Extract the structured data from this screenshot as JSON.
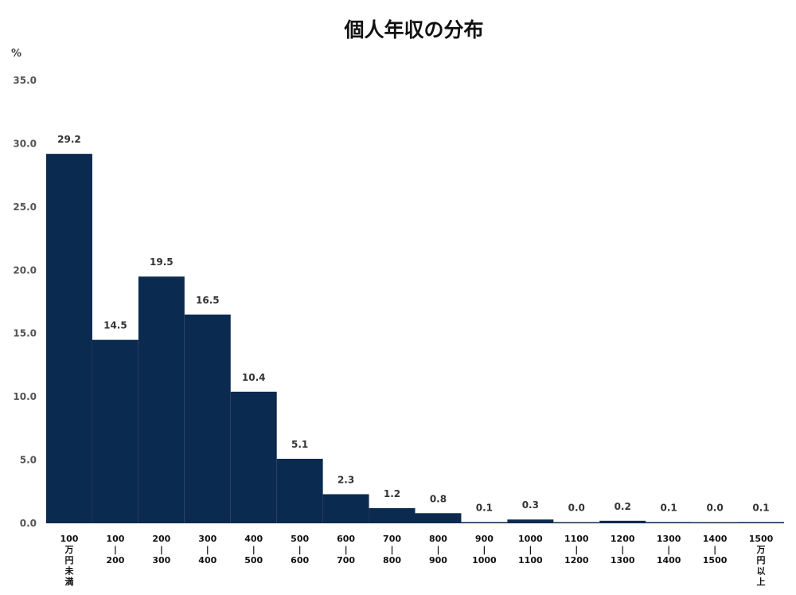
{
  "chart_data": {
    "type": "bar",
    "title": "個人年収の分布",
    "ylabel": "%",
    "xlabel": "",
    "ylim": [
      0,
      35
    ],
    "yticks": [
      "0.0",
      "5.0",
      "10.0",
      "15.0",
      "20.0",
      "25.0",
      "30.0",
      "35.0"
    ],
    "grid": false,
    "legend": "none",
    "categories": [
      [
        "100",
        "万",
        "円",
        "未",
        "満"
      ],
      [
        "100",
        "|",
        "200"
      ],
      [
        "200",
        "|",
        "300"
      ],
      [
        "300",
        "|",
        "400"
      ],
      [
        "400",
        "|",
        "500"
      ],
      [
        "500",
        "|",
        "600"
      ],
      [
        "600",
        "|",
        "700"
      ],
      [
        "700",
        "|",
        "800"
      ],
      [
        "800",
        "|",
        "900"
      ],
      [
        "900",
        "|",
        "1000"
      ],
      [
        "1000",
        "|",
        "1100"
      ],
      [
        "1100",
        "|",
        "1200"
      ],
      [
        "1200",
        "|",
        "1300"
      ],
      [
        "1300",
        "|",
        "1400"
      ],
      [
        "1400",
        "|",
        "1500"
      ],
      [
        "1500",
        "万",
        "円",
        "以",
        "上"
      ]
    ],
    "values": [
      29.2,
      14.5,
      19.5,
      16.5,
      10.4,
      5.1,
      2.3,
      1.2,
      0.8,
      0.1,
      0.3,
      0.0,
      0.2,
      0.1,
      0.0,
      0.1
    ],
    "value_labels": [
      "29.2",
      "14.5",
      "19.5",
      "16.5",
      "10.4",
      "5.1",
      "2.3",
      "1.2",
      "0.8",
      "0.1",
      "0.3",
      "0.0",
      "0.2",
      "0.1",
      "0.0",
      "0.1"
    ],
    "bar_color": "#0b2a4f"
  }
}
